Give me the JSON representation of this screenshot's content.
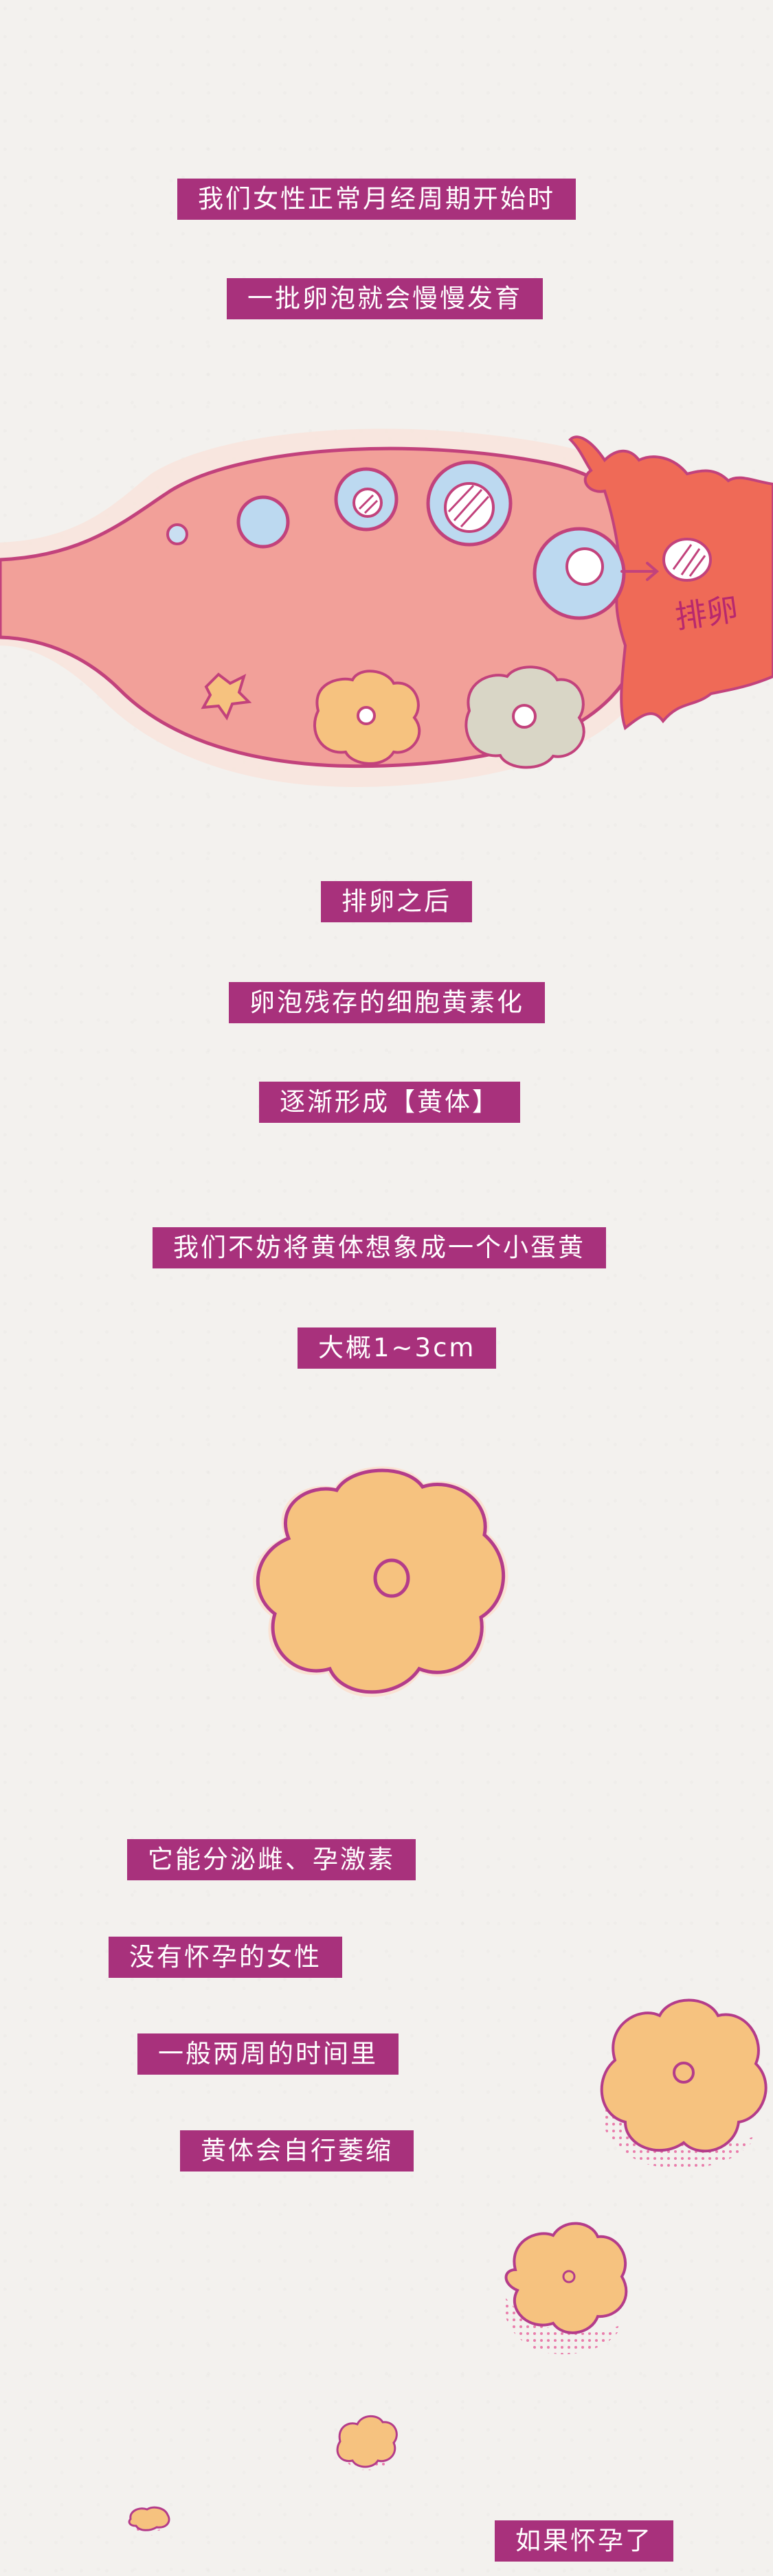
{
  "captions": {
    "c1": "我们女性正常月经周期开始时",
    "c2": "一批卵泡就会慢慢发育",
    "c3": "排卵之后",
    "c4": "卵泡残存的细胞黄素化",
    "c5": "逐渐形成【黄体】",
    "c6": "我们不妨将黄体想象成一个小蛋黄",
    "c7": "大概1~3cm",
    "c8": "它能分泌雌、孕激素",
    "c9": "没有怀孕的女性",
    "c10": "一般两周的时间里",
    "c11": "黄体会自行萎缩",
    "c12": "如果怀孕了"
  },
  "illustration": {
    "ovulation_label": "排卵"
  },
  "colors": {
    "caption_bg": "#a8317c",
    "caption_text": "#ffffff",
    "ovary_fill": "#f2a099",
    "ovary_outline": "#c2427c",
    "tube_fill": "#ef6a57",
    "follicle_blue": "#bcd9f0",
    "corpus_luteum": "#f6c27f",
    "corpus_outline": "#b43c8a",
    "paper": "#f3f1ee"
  }
}
